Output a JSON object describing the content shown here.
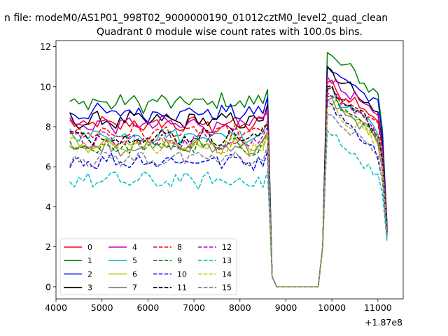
{
  "chart_data": {
    "type": "line",
    "suptitle": "n file: modeM0/AS1P01_998T02_9000000190_01012cztM0_level2_quad_clean",
    "title": "Quadrant 0 module wise count rates with 100.0s bins.",
    "xlabel": "",
    "ylabel": "",
    "x_offset_label": "+1.87e8",
    "xlim": [
      4000,
      11550
    ],
    "ylim": [
      -0.6,
      12.3
    ],
    "xticks": [
      4000,
      5000,
      6000,
      7000,
      8000,
      9000,
      10000,
      11000
    ],
    "yticks": [
      0,
      2,
      4,
      6,
      8,
      10,
      12
    ],
    "x_start": 4300,
    "x_step": 100,
    "n_points": 70,
    "legend_location": "lower-left",
    "series": [
      {
        "name": "0",
        "color": "#ff0000",
        "dash": "solid",
        "base": 8.1,
        "amp": 0.35,
        "peak": 10.2
      },
      {
        "name": "1",
        "color": "#008000",
        "dash": "solid",
        "base": 9.2,
        "amp": 0.4,
        "peak": 11.7
      },
      {
        "name": "2",
        "color": "#0000ff",
        "dash": "solid",
        "base": 8.7,
        "amp": 0.35,
        "peak": 11.0
      },
      {
        "name": "3",
        "color": "#000000",
        "dash": "solid",
        "base": 8.3,
        "amp": 0.35,
        "peak": 11.0
      },
      {
        "name": "4",
        "color": "#bf00bf",
        "dash": "solid",
        "base": 8.1,
        "amp": 0.35,
        "peak": 10.5
      },
      {
        "name": "5",
        "color": "#00bfbf",
        "dash": "solid",
        "base": 7.6,
        "amp": 0.35,
        "peak": 9.8
      },
      {
        "name": "6",
        "color": "#bfbf00",
        "dash": "solid",
        "base": 7.1,
        "amp": 0.35,
        "peak": 9.4
      },
      {
        "name": "7",
        "color": "#808080",
        "dash": "solid",
        "base": 7.0,
        "amp": 0.35,
        "peak": 9.3
      },
      {
        "name": "8",
        "color": "#ff0000",
        "dash": "dashed",
        "base": 7.7,
        "amp": 0.35,
        "peak": 9.9
      },
      {
        "name": "9",
        "color": "#008000",
        "dash": "dashed",
        "base": 7.0,
        "amp": 0.35,
        "peak": 9.5
      },
      {
        "name": "10",
        "color": "#0000ff",
        "dash": "dashed",
        "base": 6.3,
        "amp": 0.35,
        "peak": 9.2
      },
      {
        "name": "11",
        "color": "#000000",
        "dash": "dashed",
        "base": 7.5,
        "amp": 0.35,
        "peak": 10.0
      },
      {
        "name": "12",
        "color": "#bf00bf",
        "dash": "dashed",
        "base": 7.3,
        "amp": 0.35,
        "peak": 9.7
      },
      {
        "name": "13",
        "color": "#00bfbf",
        "dash": "dashed",
        "base": 5.3,
        "amp": 0.35,
        "peak": 7.8
      },
      {
        "name": "14",
        "color": "#bfbf00",
        "dash": "dashed",
        "base": 7.0,
        "amp": 0.35,
        "peak": 9.0
      },
      {
        "name": "15",
        "color": "#808080",
        "dash": "dashed",
        "base": 6.4,
        "amp": 0.35,
        "peak": 8.6
      }
    ]
  }
}
